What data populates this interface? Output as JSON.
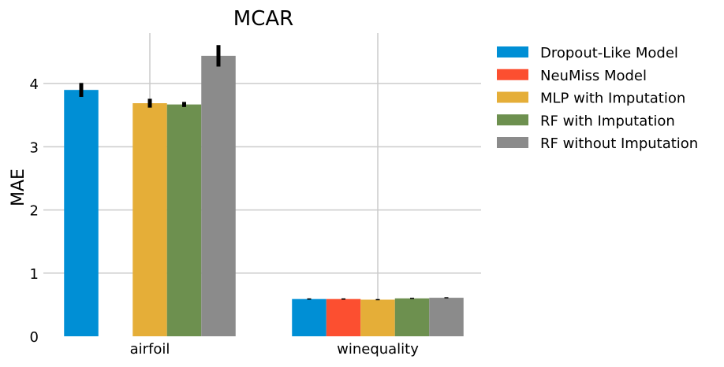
{
  "chart_data": {
    "type": "bar",
    "title": "MCAR",
    "xlabel": "",
    "ylabel": "MAE",
    "categories": [
      "airfoil",
      "winequality"
    ],
    "ylim": [
      0,
      4.8
    ],
    "yticks": [
      0,
      1,
      2,
      3,
      4
    ],
    "grid": true,
    "legend_position": "outside-right",
    "series": [
      {
        "name": "Dropout-Like Model",
        "color": "#008fd5",
        "values": [
          3.9,
          0.59
        ],
        "errors": [
          0.11,
          0.01
        ]
      },
      {
        "name": "NeuMiss Model",
        "color": "#fc4f30",
        "values": [
          0,
          0.59
        ],
        "errors": [
          0,
          0.01
        ]
      },
      {
        "name": "MLP with Imputation",
        "color": "#e5ae38",
        "values": [
          3.69,
          0.58
        ],
        "errors": [
          0.07,
          0.005
        ]
      },
      {
        "name": "RF with Imputation",
        "color": "#6d904f",
        "values": [
          3.67,
          0.6
        ],
        "errors": [
          0.04,
          0.005
        ]
      },
      {
        "name": "RF without Imputation",
        "color": "#8b8b8b",
        "values": [
          4.44,
          0.61
        ],
        "errors": [
          0.17,
          0.005
        ]
      }
    ]
  }
}
